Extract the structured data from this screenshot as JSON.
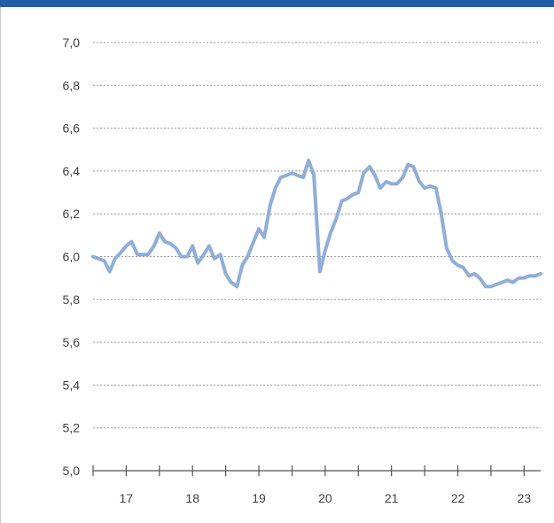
{
  "chart_data": {
    "type": "line",
    "title": "",
    "xlabel": "",
    "ylabel": "",
    "ylim": [
      5.0,
      7.0
    ],
    "xlim": [
      16.25,
      23.0
    ],
    "y_ticks": [
      "7,0",
      "6,8",
      "6,6",
      "6,4",
      "6,2",
      "6,0",
      "5,8",
      "5,6",
      "5,4",
      "5,2",
      "5,0"
    ],
    "y_tick_values": [
      7.0,
      6.8,
      6.6,
      6.4,
      6.2,
      6.0,
      5.8,
      5.6,
      5.4,
      5.2,
      5.0
    ],
    "x_ticks": [
      "17",
      "18",
      "19",
      "20",
      "21",
      "22",
      "23"
    ],
    "x_tick_values": [
      16.75,
      17.75,
      18.75,
      19.75,
      20.75,
      21.75,
      22.75
    ],
    "grid": true,
    "series": [
      {
        "color": "#8eaedb",
        "x": [
          16.25,
          16.33,
          16.42,
          16.5,
          16.58,
          16.67,
          16.75,
          16.83,
          16.92,
          17.0,
          17.08,
          17.17,
          17.25,
          17.33,
          17.42,
          17.5,
          17.58,
          17.67,
          17.75,
          17.83,
          17.92,
          18.0,
          18.08,
          18.17,
          18.25,
          18.33,
          18.42,
          18.5,
          18.58,
          18.67,
          18.75,
          18.83,
          18.92,
          19.0,
          19.08,
          19.17,
          19.25,
          19.33,
          19.42,
          19.5,
          19.58,
          19.67,
          19.75,
          19.83,
          19.92,
          20.0,
          20.08,
          20.17,
          20.25,
          20.33,
          20.42,
          20.5,
          20.58,
          20.67,
          20.75,
          20.83,
          20.92,
          21.0,
          21.08,
          21.17,
          21.25,
          21.33,
          21.42,
          21.5,
          21.58,
          21.67,
          21.75,
          21.83,
          21.92,
          22.0,
          22.08,
          22.17,
          22.25,
          22.33,
          22.42,
          22.5,
          22.58,
          22.67,
          22.75,
          22.83,
          22.92,
          23.0
        ],
        "values": [
          6.0,
          5.99,
          5.98,
          5.93,
          5.99,
          6.02,
          6.05,
          6.07,
          6.01,
          6.01,
          6.01,
          6.05,
          6.11,
          6.07,
          6.06,
          6.04,
          6.0,
          6.0,
          6.05,
          5.97,
          6.01,
          6.05,
          5.99,
          6.01,
          5.92,
          5.88,
          5.86,
          5.96,
          6.0,
          6.07,
          6.13,
          6.09,
          6.24,
          6.32,
          6.37,
          6.38,
          6.39,
          6.38,
          6.37,
          6.45,
          6.38,
          5.93,
          6.03,
          6.11,
          6.18,
          6.26,
          6.27,
          6.29,
          6.3,
          6.39,
          6.42,
          6.38,
          6.32,
          6.35,
          6.34,
          6.34,
          6.37,
          6.43,
          6.42,
          6.35,
          6.32,
          6.33,
          6.32,
          6.2,
          6.04,
          5.98,
          5.96,
          5.95,
          5.91,
          5.92,
          5.9,
          5.86,
          5.86,
          5.87,
          5.88,
          5.89,
          5.88,
          5.9,
          5.9,
          5.91,
          5.91,
          5.92
        ]
      }
    ]
  }
}
